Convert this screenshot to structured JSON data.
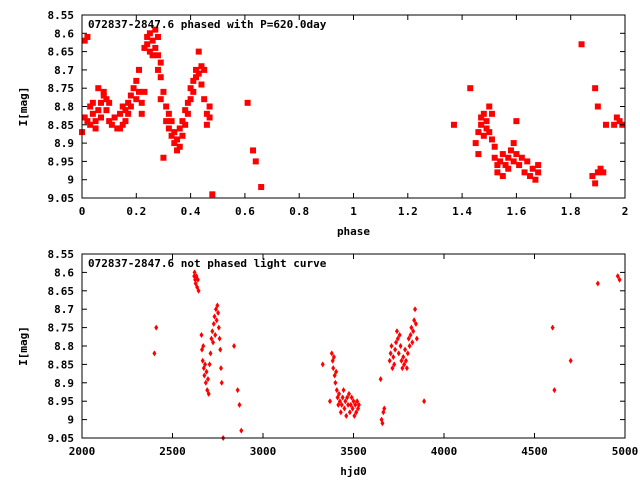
{
  "colors": {
    "points": "#ff0000",
    "frame": "#000000",
    "background": "#ffffff"
  },
  "chart_data": [
    {
      "type": "scatter",
      "title": "072837-2847.6 phased with P=620.0day",
      "xlabel": "phase",
      "ylabel": "I[mag]",
      "xlim": [
        0,
        2
      ],
      "ylim": [
        8.55,
        9.05
      ],
      "y_inverted": true,
      "grid": false,
      "marker": "filled-square",
      "x_ticks": [
        "0",
        "0.2",
        "0.4",
        "0.6",
        "0.8",
        "1",
        "1.2",
        "1.4",
        "1.6",
        "1.8",
        "2"
      ],
      "y_ticks": [
        "8.55",
        "8.6",
        "8.65",
        "8.7",
        "8.75",
        "8.8",
        "8.85",
        "8.9",
        "8.95",
        "9",
        "9.05"
      ],
      "points": [
        [
          0.0,
          8.87
        ],
        [
          0.01,
          8.62
        ],
        [
          0.01,
          8.83
        ],
        [
          0.02,
          8.61
        ],
        [
          0.02,
          8.84
        ],
        [
          0.03,
          8.8
        ],
        [
          0.03,
          8.85
        ],
        [
          0.04,
          8.82
        ],
        [
          0.04,
          8.79
        ],
        [
          0.05,
          8.84
        ],
        [
          0.05,
          8.86
        ],
        [
          0.06,
          8.81
        ],
        [
          0.06,
          8.75
        ],
        [
          0.07,
          8.79
        ],
        [
          0.07,
          8.83
        ],
        [
          0.08,
          8.77
        ],
        [
          0.08,
          8.76
        ],
        [
          0.09,
          8.78
        ],
        [
          0.09,
          8.81
        ],
        [
          0.1,
          8.79
        ],
        [
          0.1,
          8.84
        ],
        [
          0.11,
          8.85
        ],
        [
          0.12,
          8.83
        ],
        [
          0.13,
          8.86
        ],
        [
          0.14,
          8.86
        ],
        [
          0.14,
          8.82
        ],
        [
          0.15,
          8.85
        ],
        [
          0.15,
          8.8
        ],
        [
          0.16,
          8.81
        ],
        [
          0.16,
          8.84
        ],
        [
          0.17,
          8.79
        ],
        [
          0.17,
          8.82
        ],
        [
          0.18,
          8.77
        ],
        [
          0.18,
          8.8
        ],
        [
          0.19,
          8.75
        ],
        [
          0.2,
          8.73
        ],
        [
          0.2,
          8.78
        ],
        [
          0.21,
          8.7
        ],
        [
          0.21,
          8.76
        ],
        [
          0.22,
          8.79
        ],
        [
          0.22,
          8.82
        ],
        [
          0.23,
          8.76
        ],
        [
          0.23,
          8.64
        ],
        [
          0.24,
          8.61
        ],
        [
          0.24,
          8.63
        ],
        [
          0.25,
          8.6
        ],
        [
          0.25,
          8.65
        ],
        [
          0.26,
          8.62
        ],
        [
          0.26,
          8.66
        ],
        [
          0.27,
          8.59
        ],
        [
          0.27,
          8.64
        ],
        [
          0.28,
          8.61
        ],
        [
          0.28,
          8.66
        ],
        [
          0.28,
          8.7
        ],
        [
          0.29,
          8.68
        ],
        [
          0.29,
          8.72
        ],
        [
          0.29,
          8.78
        ],
        [
          0.3,
          8.94
        ],
        [
          0.3,
          8.76
        ],
        [
          0.31,
          8.8
        ],
        [
          0.31,
          8.84
        ],
        [
          0.32,
          8.82
        ],
        [
          0.32,
          8.86
        ],
        [
          0.33,
          8.84
        ],
        [
          0.33,
          8.88
        ],
        [
          0.34,
          8.87
        ],
        [
          0.34,
          8.9
        ],
        [
          0.35,
          8.92
        ],
        [
          0.35,
          8.89
        ],
        [
          0.36,
          8.91
        ],
        [
          0.36,
          8.86
        ],
        [
          0.37,
          8.88
        ],
        [
          0.37,
          8.84
        ],
        [
          0.38,
          8.81
        ],
        [
          0.38,
          8.85
        ],
        [
          0.39,
          8.79
        ],
        [
          0.39,
          8.82
        ],
        [
          0.4,
          8.75
        ],
        [
          0.4,
          8.78
        ],
        [
          0.41,
          8.73
        ],
        [
          0.41,
          8.76
        ],
        [
          0.42,
          8.7
        ],
        [
          0.42,
          8.72
        ],
        [
          0.43,
          8.65
        ],
        [
          0.43,
          8.71
        ],
        [
          0.44,
          8.69
        ],
        [
          0.44,
          8.74
        ],
        [
          0.45,
          8.7
        ],
        [
          0.45,
          8.78
        ],
        [
          0.46,
          8.82
        ],
        [
          0.46,
          8.85
        ],
        [
          0.47,
          8.8
        ],
        [
          0.47,
          8.83
        ],
        [
          0.48,
          9.04
        ],
        [
          0.61,
          8.79
        ],
        [
          0.63,
          8.92
        ],
        [
          0.64,
          8.95
        ],
        [
          0.66,
          9.02
        ],
        [
          1.37,
          8.85
        ],
        [
          1.43,
          8.75
        ],
        [
          1.45,
          8.9
        ],
        [
          1.46,
          8.93
        ],
        [
          1.46,
          8.87
        ],
        [
          1.47,
          8.83
        ],
        [
          1.47,
          8.85
        ],
        [
          1.48,
          8.82
        ],
        [
          1.48,
          8.88
        ],
        [
          1.49,
          8.86
        ],
        [
          1.49,
          8.84
        ],
        [
          1.5,
          8.87
        ],
        [
          1.5,
          8.8
        ],
        [
          1.51,
          8.89
        ],
        [
          1.51,
          8.82
        ],
        [
          1.52,
          8.94
        ],
        [
          1.52,
          8.91
        ],
        [
          1.53,
          8.96
        ],
        [
          1.53,
          8.98
        ],
        [
          1.54,
          8.95
        ],
        [
          1.55,
          8.99
        ],
        [
          1.55,
          8.93
        ],
        [
          1.56,
          8.96
        ],
        [
          1.57,
          8.94
        ],
        [
          1.57,
          8.97
        ],
        [
          1.58,
          8.92
        ],
        [
          1.59,
          8.95
        ],
        [
          1.59,
          8.9
        ],
        [
          1.6,
          8.93
        ],
        [
          1.6,
          8.84
        ],
        [
          1.61,
          8.96
        ],
        [
          1.62,
          8.94
        ],
        [
          1.63,
          8.98
        ],
        [
          1.64,
          8.95
        ],
        [
          1.65,
          8.99
        ],
        [
          1.66,
          8.97
        ],
        [
          1.67,
          9.0
        ],
        [
          1.68,
          8.98
        ],
        [
          1.68,
          8.96
        ],
        [
          1.84,
          8.63
        ],
        [
          1.88,
          8.99
        ],
        [
          1.89,
          8.75
        ],
        [
          1.89,
          9.01
        ],
        [
          1.9,
          8.98
        ],
        [
          1.9,
          8.8
        ],
        [
          1.91,
          8.97
        ],
        [
          1.92,
          8.98
        ],
        [
          1.93,
          8.85
        ],
        [
          1.96,
          8.85
        ],
        [
          1.97,
          8.83
        ],
        [
          1.98,
          8.84
        ],
        [
          1.99,
          8.85
        ]
      ]
    },
    {
      "type": "scatter",
      "title": "072837-2847.6 not phased light curve",
      "xlabel": "hjd0",
      "ylabel": "I[mag]",
      "xlim": [
        2000,
        5000
      ],
      "ylim": [
        8.55,
        9.05
      ],
      "y_inverted": true,
      "grid": false,
      "marker": "small-diamond",
      "x_ticks": [
        "2000",
        "2500",
        "3000",
        "3500",
        "4000",
        "4500",
        "5000"
      ],
      "y_ticks": [
        "8.55",
        "8.6",
        "8.65",
        "8.7",
        "8.75",
        "8.8",
        "8.85",
        "8.9",
        "8.95",
        "9",
        "9.05"
      ],
      "points": [
        [
          2400,
          8.82
        ],
        [
          2410,
          8.75
        ],
        [
          2620,
          8.61
        ],
        [
          2622,
          8.6
        ],
        [
          2625,
          8.62
        ],
        [
          2628,
          8.63
        ],
        [
          2632,
          8.61
        ],
        [
          2636,
          8.64
        ],
        [
          2640,
          8.62
        ],
        [
          2644,
          8.65
        ],
        [
          2660,
          8.77
        ],
        [
          2663,
          8.81
        ],
        [
          2667,
          8.84
        ],
        [
          2670,
          8.8
        ],
        [
          2673,
          8.86
        ],
        [
          2676,
          8.88
        ],
        [
          2680,
          8.85
        ],
        [
          2684,
          8.9
        ],
        [
          2688,
          8.87
        ],
        [
          2692,
          8.92
        ],
        [
          2696,
          8.89
        ],
        [
          2700,
          8.93
        ],
        [
          2705,
          8.85
        ],
        [
          2710,
          8.82
        ],
        [
          2715,
          8.78
        ],
        [
          2720,
          8.76
        ],
        [
          2724,
          8.79
        ],
        [
          2728,
          8.74
        ],
        [
          2732,
          8.72
        ],
        [
          2736,
          8.77
        ],
        [
          2740,
          8.7
        ],
        [
          2744,
          8.73
        ],
        [
          2748,
          8.69
        ],
        [
          2752,
          8.71
        ],
        [
          2756,
          8.75
        ],
        [
          2760,
          8.78
        ],
        [
          2764,
          8.81
        ],
        [
          2768,
          8.86
        ],
        [
          2772,
          8.9
        ],
        [
          2780,
          9.05
        ],
        [
          2840,
          8.8
        ],
        [
          2860,
          8.92
        ],
        [
          2870,
          8.96
        ],
        [
          2880,
          9.03
        ],
        [
          3330,
          8.85
        ],
        [
          3370,
          8.95
        ],
        [
          3380,
          8.82
        ],
        [
          3385,
          8.84
        ],
        [
          3388,
          8.86
        ],
        [
          3392,
          8.83
        ],
        [
          3396,
          8.88
        ],
        [
          3400,
          8.9
        ],
        [
          3404,
          8.87
        ],
        [
          3408,
          8.92
        ],
        [
          3412,
          8.94
        ],
        [
          3416,
          8.96
        ],
        [
          3420,
          8.93
        ],
        [
          3425,
          8.95
        ],
        [
          3430,
          8.98
        ],
        [
          3435,
          8.96
        ],
        [
          3440,
          8.94
        ],
        [
          3445,
          8.92
        ],
        [
          3450,
          8.97
        ],
        [
          3455,
          8.95
        ],
        [
          3460,
          8.99
        ],
        [
          3465,
          8.94
        ],
        [
          3470,
          8.96
        ],
        [
          3475,
          8.93
        ],
        [
          3480,
          8.98
        ],
        [
          3485,
          8.96
        ],
        [
          3490,
          8.94
        ],
        [
          3495,
          8.97
        ],
        [
          3500,
          8.95
        ],
        [
          3505,
          8.99
        ],
        [
          3510,
          8.96
        ],
        [
          3515,
          8.98
        ],
        [
          3520,
          8.95
        ],
        [
          3525,
          8.97
        ],
        [
          3530,
          8.96
        ],
        [
          3650,
          8.89
        ],
        [
          3655,
          9.0
        ],
        [
          3660,
          9.01
        ],
        [
          3665,
          8.98
        ],
        [
          3670,
          8.97
        ],
        [
          3700,
          8.84
        ],
        [
          3705,
          8.82
        ],
        [
          3710,
          8.8
        ],
        [
          3715,
          8.86
        ],
        [
          3720,
          8.83
        ],
        [
          3725,
          8.85
        ],
        [
          3730,
          8.81
        ],
        [
          3735,
          8.79
        ],
        [
          3740,
          8.76
        ],
        [
          3745,
          8.78
        ],
        [
          3750,
          8.82
        ],
        [
          3755,
          8.77
        ],
        [
          3760,
          8.8
        ],
        [
          3765,
          8.84
        ],
        [
          3770,
          8.86
        ],
        [
          3775,
          8.83
        ],
        [
          3780,
          8.85
        ],
        [
          3785,
          8.81
        ],
        [
          3790,
          8.84
        ],
        [
          3795,
          8.86
        ],
        [
          3800,
          8.82
        ],
        [
          3805,
          8.78
        ],
        [
          3810,
          8.8
        ],
        [
          3815,
          8.77
        ],
        [
          3820,
          8.75
        ],
        [
          3825,
          8.79
        ],
        [
          3830,
          8.76
        ],
        [
          3835,
          8.73
        ],
        [
          3840,
          8.7
        ],
        [
          3845,
          8.74
        ],
        [
          3850,
          8.78
        ],
        [
          3890,
          8.95
        ],
        [
          4600,
          8.75
        ],
        [
          4610,
          8.92
        ],
        [
          4700,
          8.84
        ],
        [
          4850,
          8.63
        ],
        [
          4960,
          8.61
        ],
        [
          4970,
          8.62
        ]
      ]
    }
  ]
}
